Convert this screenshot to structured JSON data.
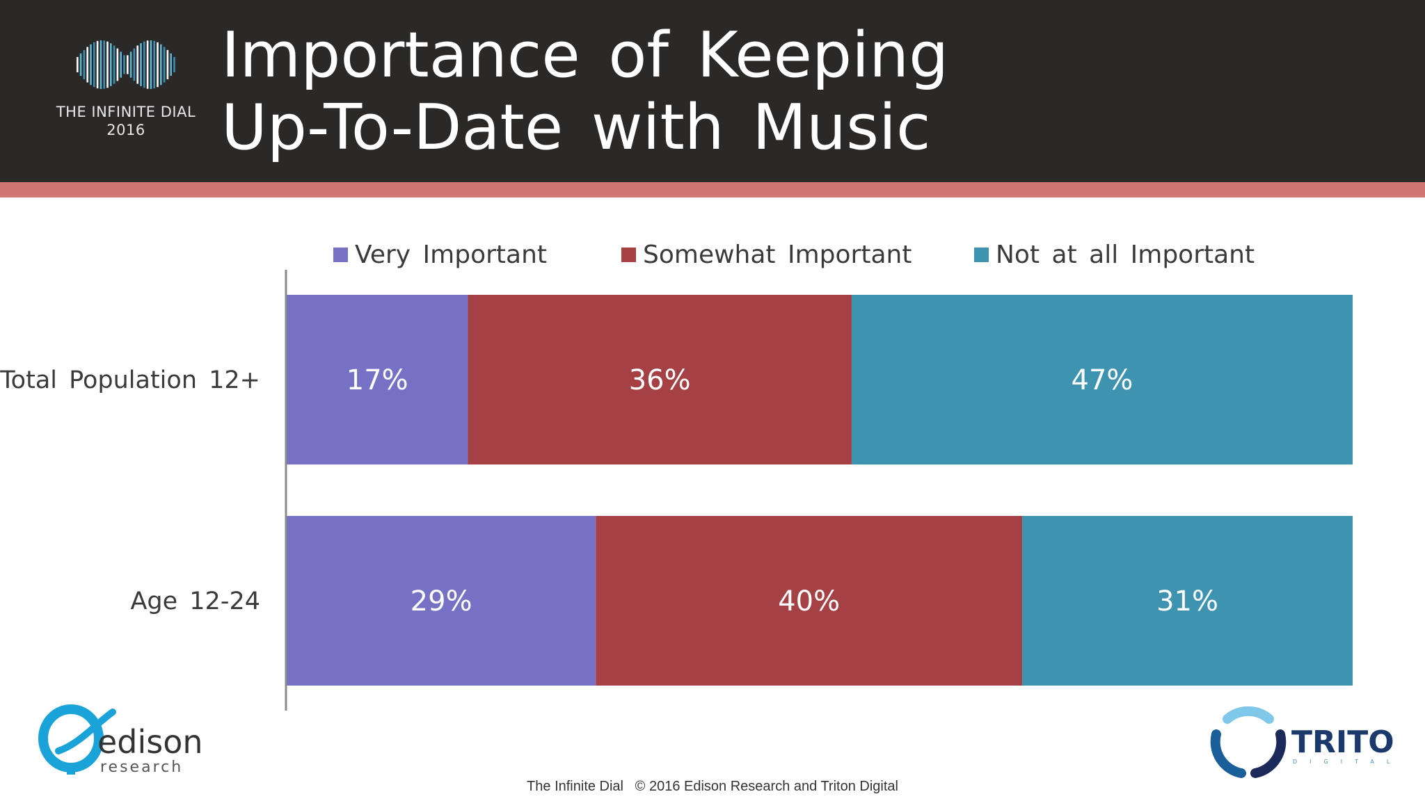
{
  "header": {
    "brand_line1": "THE INFINITE DIAL",
    "brand_line2": "2016",
    "title_line1": "Importance of Keeping",
    "title_line2": "Up-To-Date with Music"
  },
  "colors": {
    "header_bg": "#2b2828",
    "accent": "#cf7572",
    "very_important": "#7571c5",
    "somewhat_important": "#a54145",
    "not_at_all_important": "#3e93b1"
  },
  "chart_data": {
    "type": "bar",
    "orientation": "horizontal",
    "stacked": true,
    "percent": true,
    "categories": [
      "Total Population 12+",
      "Age 12-24"
    ],
    "series": [
      {
        "name": "Very Important",
        "values": [
          17,
          29
        ],
        "labels": [
          "17%",
          "29%"
        ],
        "color": "#7571c5"
      },
      {
        "name": "Somewhat Important",
        "values": [
          36,
          40
        ],
        "labels": [
          "36%",
          "40%"
        ],
        "color": "#a54145"
      },
      {
        "name": "Not at all Important",
        "values": [
          47,
          31
        ],
        "labels": [
          "47%",
          "31%"
        ],
        "color": "#3e93b1"
      }
    ],
    "xlim": [
      0,
      100
    ],
    "legend": "top",
    "grid": false
  },
  "logos": {
    "edison_name": "edison",
    "edison_sub": "research",
    "triton_name": "TRITON",
    "triton_sub": "DIGITAL"
  },
  "footer": {
    "text": "The Infinite Dial   © 2016 Edison Research and Triton Digital"
  }
}
